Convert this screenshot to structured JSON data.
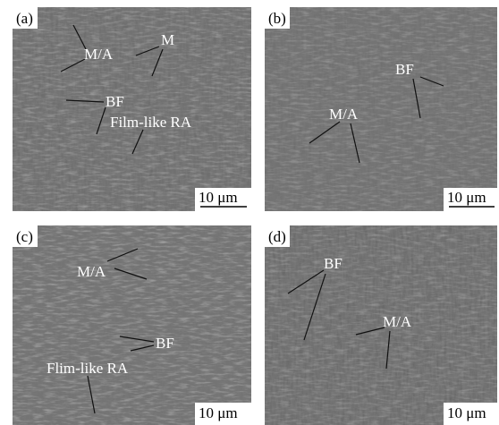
{
  "panels": [
    {
      "label": "(a)",
      "annotations": [
        "M/A",
        "M",
        "BF",
        "Film-like RA"
      ],
      "scale_bar": "10 μm"
    },
    {
      "label": "(b)",
      "annotations": [
        "BF",
        "M/A"
      ],
      "scale_bar": "10 μm"
    },
    {
      "label": "(c)",
      "annotations": [
        "M/A",
        "BF",
        "Flim-like RA"
      ],
      "scale_bar": "10 μm"
    },
    {
      "label": "(d)",
      "annotations": [
        "BF",
        "M/A"
      ],
      "scale_bar": "10 μm"
    }
  ]
}
